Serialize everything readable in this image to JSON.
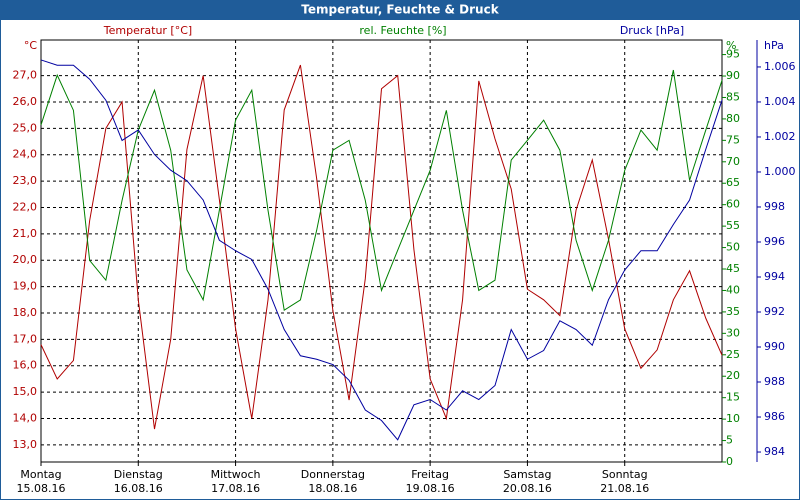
{
  "chart_data": {
    "type": "line",
    "title": "Temperatur, Feuchte & Druck",
    "categories": [
      "Montag\n15.08.16",
      null,
      null,
      null,
      null,
      null,
      "Dienstag\n16.08.16",
      null,
      null,
      null,
      null,
      null,
      "Mittwoch\n17.08.16",
      null,
      null,
      null,
      null,
      null,
      "Donnerstag\n18.08.16",
      null,
      null,
      null,
      null,
      null,
      "Freitag\n19.08.16",
      null,
      null,
      null,
      null,
      null,
      "Samstag\n20.08.16",
      null,
      null,
      null,
      null,
      null,
      "Sonntag\n21.08.16",
      null,
      null,
      null,
      null,
      null,
      null
    ],
    "series": [
      {
        "name": "Temperatur [°C]",
        "unit": "°C",
        "color": "#b00000",
        "axis": "y",
        "values": [
          16.8,
          15.5,
          16.2,
          21.5,
          25.0,
          26.0,
          18.5,
          13.6,
          17.0,
          24.2,
          27.0,
          22.3,
          17.4,
          14.0,
          18.5,
          25.7,
          27.4,
          23.1,
          18.1,
          14.7,
          19.3,
          26.5,
          27.0,
          20.4,
          15.5,
          14.0,
          18.5,
          26.8,
          24.6,
          22.7,
          18.9,
          18.5,
          17.9,
          21.9,
          23.8,
          20.8,
          17.4,
          15.9,
          16.6,
          18.5,
          19.6,
          17.8,
          16.4
        ]
      },
      {
        "name": "rel. Feuchte [%]",
        "unit": "%",
        "color": "#008000",
        "axis": "y2",
        "values": [
          78.6,
          90.2,
          82,
          47,
          42.4,
          61,
          77.4,
          86.7,
          72.7,
          44.8,
          37.8,
          58.7,
          79.7,
          86.7,
          58.7,
          35.4,
          37.8,
          54,
          72.7,
          75,
          61,
          40,
          49.4,
          58.7,
          68,
          82,
          58.7,
          40,
          42.4,
          70.4,
          75,
          79.7,
          72.7,
          51.7,
          40,
          51.7,
          68,
          77.4,
          72.7,
          91.4,
          65.7,
          77.4,
          89
        ]
      },
      {
        "name": "Druck [hPa]",
        "unit": "hPa",
        "color": "#0000a0",
        "axis": "y3",
        "values": [
          1006.4,
          1006.1,
          1006.1,
          1005.3,
          1004.1,
          1001.8,
          1002.4,
          1001.0,
          1000.1,
          999.5,
          998.4,
          996.1,
          995.5,
          995.0,
          993.3,
          991.0,
          989.5,
          989.3,
          989.0,
          988.1,
          986.4,
          985.8,
          984.7,
          986.7,
          987.0,
          986.4,
          987.5,
          987.0,
          987.8,
          991.0,
          989.3,
          989.8,
          991.5,
          991.0,
          990.1,
          992.7,
          994.4,
          995.5,
          995.5,
          997.0,
          998.4,
          1001.3,
          1004.1
        ]
      }
    ],
    "ylim": [
      12.35,
      28.35
    ],
    "yticks": [
      {
        "value": 13,
        "label": "13,0"
      },
      {
        "value": 14,
        "label": "14,0"
      },
      {
        "value": 15,
        "label": "15,0"
      },
      {
        "value": 16,
        "label": "16,0"
      },
      {
        "value": 17,
        "label": "17,0"
      },
      {
        "value": 18,
        "label": "18,0"
      },
      {
        "value": 19,
        "label": "19,0"
      },
      {
        "value": 20,
        "label": "20,0"
      },
      {
        "value": 21,
        "label": "21,0"
      },
      {
        "value": 22,
        "label": "22,0"
      },
      {
        "value": 23,
        "label": "23,0"
      },
      {
        "value": 24,
        "label": "24,0"
      },
      {
        "value": 25,
        "label": "25,0"
      },
      {
        "value": 26,
        "label": "26,0"
      },
      {
        "value": 27,
        "label": "27,0"
      }
    ],
    "y2lim": [
      0,
      98.4
    ],
    "y2ticks": [
      0,
      5,
      10,
      15,
      20,
      25,
      30,
      35,
      40,
      45,
      50,
      55,
      60,
      65,
      70,
      75,
      80,
      85,
      90,
      95
    ],
    "y3lim": [
      983.43,
      1007.54
    ],
    "y3ticks": [
      984,
      986,
      988,
      990,
      992,
      994,
      996,
      998,
      {
        "value": 1000,
        "label": "1.000"
      },
      {
        "value": 1002,
        "label": "1.002"
      },
      {
        "value": 1004,
        "label": "1.004"
      },
      {
        "value": 1006,
        "label": "1.006"
      }
    ],
    "grid": true
  }
}
